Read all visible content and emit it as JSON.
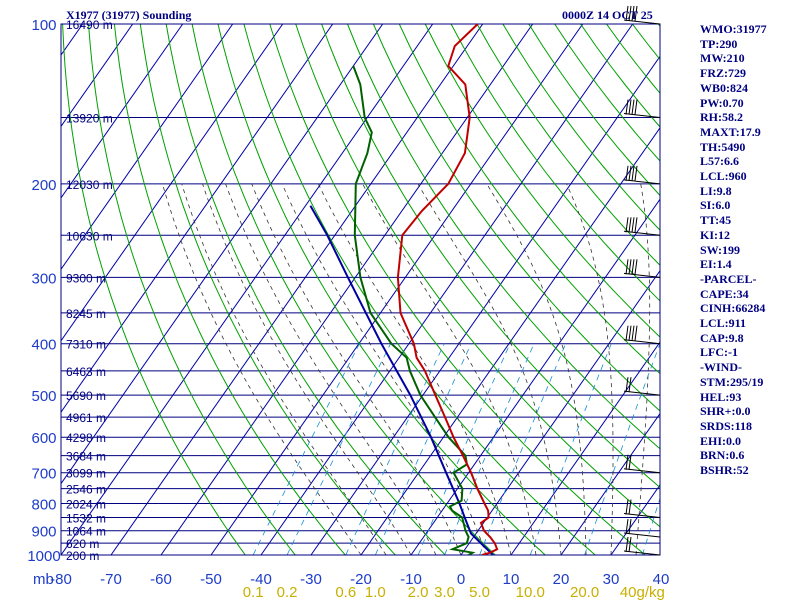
{
  "header": {
    "station": "X1977 (31977) Sounding",
    "valid_time": "0000Z 14 OCT 25"
  },
  "chart_data": {
    "type": "skew-t",
    "pressure_unit_label": "mb",
    "pressure_ticks": [
      100,
      200,
      300,
      400,
      500,
      600,
      700,
      800,
      900,
      1000
    ],
    "temperature_ticks": [
      -80,
      -70,
      -60,
      -50,
      -40,
      -30,
      -20,
      -10,
      0,
      10,
      20,
      30,
      40
    ],
    "mixing_ratio_ticks": [
      "0.1",
      "0.2",
      "0.6",
      "1.0",
      "2.0",
      "3.0",
      "5.0",
      "10.0",
      "20.0",
      "40g/kg"
    ],
    "height_labels": [
      {
        "p": 100,
        "label": "16490 m"
      },
      {
        "p": 150,
        "label": "13920 m"
      },
      {
        "p": 200,
        "label": "12030 m"
      },
      {
        "p": 250,
        "label": "10630 m"
      },
      {
        "p": 300,
        "label": "9300 m"
      },
      {
        "p": 350,
        "label": "8245 m"
      },
      {
        "p": 400,
        "label": "7310 m"
      },
      {
        "p": 450,
        "label": "6463 m"
      },
      {
        "p": 500,
        "label": "5690 m"
      },
      {
        "p": 550,
        "label": "4961 m"
      },
      {
        "p": 600,
        "label": "4298 m"
      },
      {
        "p": 650,
        "label": "3684 m"
      },
      {
        "p": 700,
        "label": "3099 m"
      },
      {
        "p": 750,
        "label": "2546 m"
      },
      {
        "p": 800,
        "label": "2024 m"
      },
      {
        "p": 850,
        "label": "1532 m"
      },
      {
        "p": 900,
        "label": "1064 m"
      },
      {
        "p": 950,
        "label": "620 m"
      },
      {
        "p": 1000,
        "label": "200 m"
      }
    ],
    "temperature": [
      {
        "p": 1000,
        "t": 4.2
      },
      {
        "p": 990,
        "t": 5.5
      },
      {
        "p": 975,
        "t": 6.4
      },
      {
        "p": 950,
        "t": 5.1
      },
      {
        "p": 925,
        "t": 3.3
      },
      {
        "p": 900,
        "t": 1.2
      },
      {
        "p": 870,
        "t": -0.5
      },
      {
        "p": 850,
        "t": 0.3
      },
      {
        "p": 825,
        "t": -0.8
      },
      {
        "p": 800,
        "t": -2.5
      },
      {
        "p": 750,
        "t": -6.0
      },
      {
        "p": 700,
        "t": -9.5
      },
      {
        "p": 650,
        "t": -13.5
      },
      {
        "p": 600,
        "t": -18.0
      },
      {
        "p": 550,
        "t": -22.5
      },
      {
        "p": 500,
        "t": -27.5
      },
      {
        "p": 450,
        "t": -33.0
      },
      {
        "p": 425,
        "t": -36.5
      },
      {
        "p": 400,
        "t": -39.0
      },
      {
        "p": 350,
        "t": -46.0
      },
      {
        "p": 300,
        "t": -51.5
      },
      {
        "p": 250,
        "t": -56.5
      },
      {
        "p": 225,
        "t": -56.0
      },
      {
        "p": 200,
        "t": -54.5
      },
      {
        "p": 175,
        "t": -55.5
      },
      {
        "p": 150,
        "t": -59.5
      },
      {
        "p": 130,
        "t": -65.0
      },
      {
        "p": 120,
        "t": -71.0
      },
      {
        "p": 110,
        "t": -72.5
      },
      {
        "p": 100,
        "t": -71.0
      }
    ],
    "dewpoint": [
      {
        "p": 1000,
        "t": 1.5
      },
      {
        "p": 990,
        "t": 2.0
      },
      {
        "p": 975,
        "t": -2.5
      },
      {
        "p": 950,
        "t": -0.5
      },
      {
        "p": 925,
        "t": -1.0
      },
      {
        "p": 900,
        "t": -2.5
      },
      {
        "p": 850,
        "t": -5.0
      },
      {
        "p": 825,
        "t": -8.0
      },
      {
        "p": 810,
        "t": -9.0
      },
      {
        "p": 790,
        "t": -7.5
      },
      {
        "p": 750,
        "t": -9.0
      },
      {
        "p": 700,
        "t": -13.0
      },
      {
        "p": 675,
        "t": -11.5
      },
      {
        "p": 650,
        "t": -13.0
      },
      {
        "p": 600,
        "t": -19.0
      },
      {
        "p": 550,
        "t": -24.5
      },
      {
        "p": 500,
        "t": -30.5
      },
      {
        "p": 450,
        "t": -36.0
      },
      {
        "p": 425,
        "t": -38.5
      },
      {
        "p": 400,
        "t": -43.5
      },
      {
        "p": 350,
        "t": -52.0
      },
      {
        "p": 300,
        "t": -59.0
      },
      {
        "p": 250,
        "t": -66.0
      },
      {
        "p": 200,
        "t": -73.0
      },
      {
        "p": 175,
        "t": -75.0
      },
      {
        "p": 160,
        "t": -77.0
      },
      {
        "p": 150,
        "t": -80.5
      },
      {
        "p": 130,
        "t": -86.0
      },
      {
        "p": 120,
        "t": -90.0
      }
    ],
    "parcel_path": [
      {
        "p": 1000,
        "t": 6.4
      },
      {
        "p": 911,
        "t": -1.0
      },
      {
        "p": 850,
        "t": -4.5
      },
      {
        "p": 800,
        "t": -7.5
      },
      {
        "p": 700,
        "t": -14.5
      },
      {
        "p": 600,
        "t": -22.5
      },
      {
        "p": 500,
        "t": -32.5
      },
      {
        "p": 400,
        "t": -45.5
      },
      {
        "p": 300,
        "t": -61.5
      },
      {
        "p": 250,
        "t": -71.5
      },
      {
        "p": 220,
        "t": -79.0
      }
    ],
    "wind_pressure_levels": [
      100,
      150,
      200,
      250,
      300,
      400,
      500,
      700,
      850,
      925,
      1000
    ]
  },
  "indices": [
    "WMO:31977",
    "TP:290",
    "MW:210",
    "FRZ:729",
    "WB0:824",
    "PW:0.70",
    "RH:58.2",
    "MAXT:17.9",
    "TH:5490",
    "L57:6.6",
    "LCL:960",
    "LI:9.8",
    "SI:6.0",
    "TT:45",
    "KI:12",
    "SW:199",
    "EI:1.4",
    "-PARCEL-",
    "CAPE:34",
    "CINH:66284",
    "LCL:911",
    "CAP:9.8",
    "LFC:-1",
    "-WIND-",
    "STM:295/19",
    "HEL:93",
    "SHR+:0.0",
    "SRDS:118",
    "EHI:0.0",
    "BRN:0.6",
    "BSHR:52"
  ],
  "colors": {
    "isobar": "#000080",
    "isotherm": "#0000aa",
    "dry_adiabat": "#00a000",
    "moist_adiabat": "#333333",
    "mixing_ratio": "#1890d0",
    "temperature": "#c00000",
    "dewpoint": "#006000",
    "parcel": "#0000a0",
    "wind_barb": "#000000"
  }
}
